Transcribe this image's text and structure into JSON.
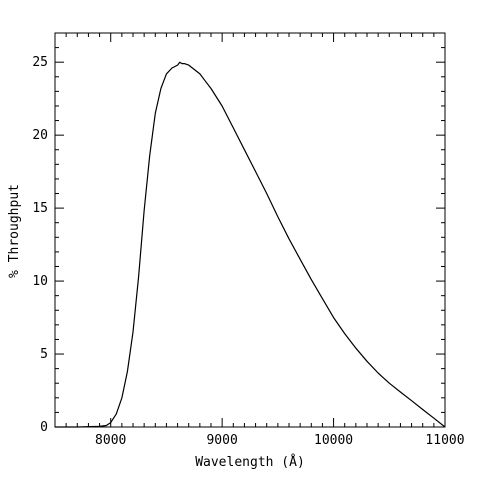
{
  "chart_data": {
    "type": "line",
    "title": "",
    "xlabel": "Wavelength (Å)",
    "ylabel": "% Throughput",
    "xlim": [
      7500,
      11000
    ],
    "ylim": [
      0,
      27
    ],
    "x_ticks": [
      8000,
      9000,
      10000,
      11000
    ],
    "y_ticks": [
      0,
      5,
      10,
      15,
      20,
      25
    ],
    "grid": false,
    "legend": "none",
    "colors": {
      "line": "#000000",
      "axes": "#000000"
    },
    "series": [
      {
        "x": [
          7500,
          7700,
          7900,
          7960,
          8000,
          8050,
          8100,
          8150,
          8200,
          8250,
          8300,
          8350,
          8400,
          8450,
          8500,
          8550,
          8600,
          8620,
          8640,
          8660,
          8700,
          8750,
          8800,
          8850,
          8900,
          9000,
          9100,
          9200,
          9300,
          9400,
          9500,
          9600,
          9700,
          9800,
          9900,
          10000,
          10100,
          10200,
          10300,
          10400,
          10500,
          10600,
          10700,
          10800,
          10900,
          11000
        ],
        "values": [
          0,
          0,
          0.05,
          0.1,
          0.3,
          0.9,
          2.0,
          3.8,
          6.5,
          10.3,
          14.8,
          18.6,
          21.5,
          23.2,
          24.2,
          24.6,
          24.8,
          25.0,
          24.9,
          24.9,
          24.8,
          24.5,
          24.2,
          23.7,
          23.2,
          22.0,
          20.5,
          19.0,
          17.5,
          16.0,
          14.4,
          12.9,
          11.5,
          10.1,
          8.8,
          7.5,
          6.4,
          5.4,
          4.5,
          3.7,
          3.0,
          2.4,
          1.8,
          1.2,
          0.6,
          0
        ]
      }
    ]
  }
}
